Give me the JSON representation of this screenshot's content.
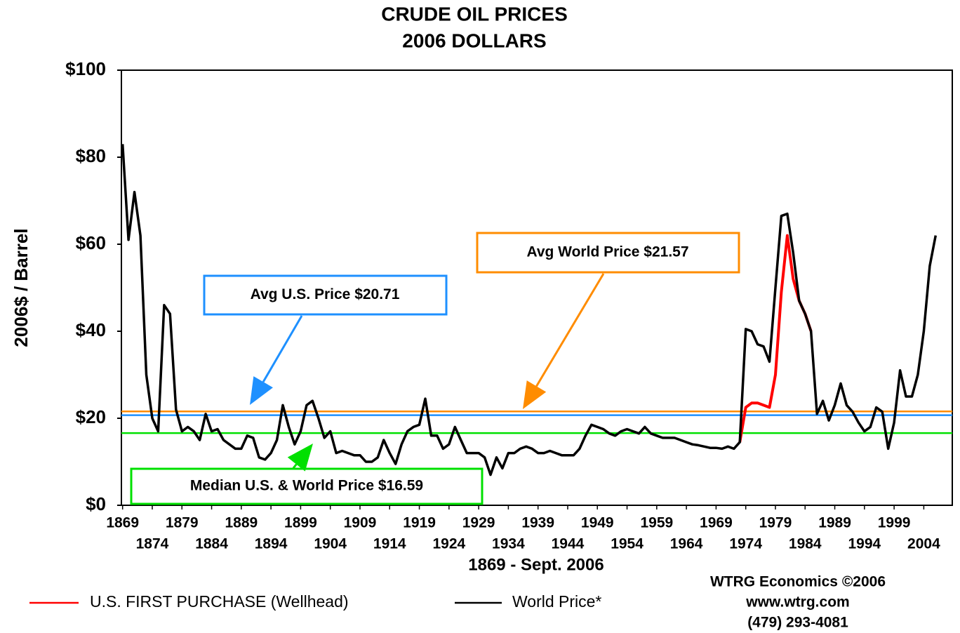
{
  "chart_data": {
    "type": "line",
    "title": "CRUDE OIL PRICES",
    "subtitle": "2006 DOLLARS",
    "xlabel": "1869 - Sept. 2006",
    "ylabel": "2006$ / Barrel",
    "x": [
      1869,
      1870,
      1871,
      1872,
      1873,
      1874,
      1875,
      1876,
      1877,
      1878,
      1879,
      1880,
      1881,
      1882,
      1883,
      1884,
      1885,
      1886,
      1887,
      1888,
      1889,
      1890,
      1891,
      1892,
      1893,
      1894,
      1895,
      1896,
      1897,
      1898,
      1899,
      1900,
      1901,
      1902,
      1903,
      1904,
      1905,
      1906,
      1907,
      1908,
      1909,
      1910,
      1911,
      1912,
      1913,
      1914,
      1915,
      1916,
      1917,
      1918,
      1919,
      1920,
      1921,
      1922,
      1923,
      1924,
      1925,
      1926,
      1927,
      1928,
      1929,
      1930,
      1931,
      1932,
      1933,
      1934,
      1935,
      1936,
      1937,
      1938,
      1939,
      1940,
      1941,
      1942,
      1943,
      1944,
      1945,
      1946,
      1947,
      1948,
      1949,
      1950,
      1951,
      1952,
      1953,
      1954,
      1955,
      1956,
      1957,
      1958,
      1959,
      1960,
      1961,
      1962,
      1963,
      1964,
      1965,
      1966,
      1967,
      1968,
      1969,
      1970,
      1971,
      1972,
      1973,
      1974,
      1975,
      1976,
      1977,
      1978,
      1979,
      1980,
      1981,
      1982,
      1983,
      1984,
      1985,
      1986,
      1987,
      1988,
      1989,
      1990,
      1991,
      1992,
      1993,
      1994,
      1995,
      1996,
      1997,
      1998,
      1999,
      2000,
      2001,
      2002,
      2003,
      2004,
      2005,
      2006
    ],
    "series": [
      {
        "name": "U.S. FIRST PURCHASE (Wellhead)",
        "color": "#ff0000",
        "values": [
          null,
          null,
          null,
          null,
          null,
          null,
          null,
          null,
          null,
          null,
          null,
          null,
          null,
          null,
          null,
          null,
          null,
          null,
          null,
          null,
          null,
          null,
          null,
          null,
          null,
          null,
          null,
          null,
          null,
          null,
          null,
          null,
          null,
          null,
          null,
          null,
          null,
          null,
          null,
          null,
          null,
          null,
          null,
          null,
          null,
          null,
          null,
          null,
          null,
          null,
          null,
          null,
          null,
          null,
          null,
          null,
          null,
          null,
          null,
          null,
          null,
          null,
          null,
          null,
          null,
          null,
          null,
          null,
          null,
          null,
          null,
          null,
          null,
          null,
          null,
          null,
          null,
          null,
          null,
          null,
          null,
          null,
          null,
          null,
          null,
          null,
          null,
          null,
          null,
          null,
          null,
          null,
          null,
          null,
          null,
          null,
          null,
          null,
          null,
          null,
          null,
          null,
          null,
          null,
          14.5,
          22.5,
          23.5,
          23.5,
          23,
          22.5,
          30,
          49,
          62,
          52,
          47,
          44,
          40,
          null,
          null,
          null,
          null,
          null,
          null,
          null,
          null,
          null,
          null,
          null,
          null,
          null,
          null,
          null,
          null,
          null,
          null,
          null,
          null,
          null
        ]
      },
      {
        "name": "World Price*",
        "color": "#000000",
        "values": [
          83,
          61,
          72,
          62,
          30,
          20,
          17,
          46,
          44,
          22,
          17,
          18,
          17,
          15,
          21,
          17,
          17.5,
          15,
          14,
          13,
          13,
          16,
          15.5,
          11,
          10.5,
          12,
          15,
          23,
          18,
          14,
          17,
          23,
          24,
          20,
          15.5,
          17,
          12,
          12.5,
          12,
          11.5,
          11.5,
          10,
          10,
          11,
          15,
          12,
          9.5,
          14,
          17,
          18,
          18.5,
          24.5,
          16,
          16,
          13,
          14,
          18,
          15,
          12,
          12,
          12,
          11,
          7,
          11,
          8.5,
          12,
          12,
          13,
          13.5,
          13,
          12,
          12,
          12.5,
          12,
          11.5,
          11.5,
          11.5,
          13,
          16,
          18.5,
          18,
          17.5,
          16.5,
          16,
          17,
          17.5,
          17,
          16.5,
          18,
          16.5,
          16,
          15.5,
          15.5,
          15.5,
          15,
          14.5,
          14,
          13.8,
          13.5,
          13.2,
          13.2,
          13,
          13.5,
          13,
          14.5,
          40.5,
          40,
          37,
          36.5,
          33,
          50,
          66.5,
          67,
          58,
          47,
          44,
          40,
          21,
          24,
          19.5,
          23,
          28,
          23,
          21.5,
          19,
          17,
          18,
          22.5,
          21.5,
          13,
          19,
          31,
          25,
          25,
          30,
          40,
          55,
          62
        ]
      }
    ],
    "reference_lines": [
      {
        "text": "Avg  World Price  $21.57",
        "value": 21.57,
        "color": "#ff8c00"
      },
      {
        "text": "Avg  U.S. Price  $20.71",
        "value": 20.71,
        "color": "#1e90ff"
      },
      {
        "text": "Median U.S. & World Price $16.59",
        "value": 16.59,
        "color": "#00e000"
      }
    ],
    "xlim": [
      1868.8,
      2008.8
    ],
    "xticks": [
      1869,
      1874,
      1879,
      1884,
      1889,
      1894,
      1899,
      1904,
      1909,
      1914,
      1919,
      1924,
      1929,
      1934,
      1939,
      1944,
      1949,
      1954,
      1959,
      1964,
      1969,
      1974,
      1979,
      1984,
      1989,
      1994,
      1999,
      2004
    ],
    "ylim": [
      0,
      100
    ],
    "yticks": [
      {
        "value": 0,
        "label": "$0"
      },
      {
        "value": 20,
        "label": "$20"
      },
      {
        "value": 40,
        "label": "$40"
      },
      {
        "value": 60,
        "label": "$60"
      },
      {
        "value": 80,
        "label": "$80"
      },
      {
        "value": 100,
        "label": "$100"
      }
    ],
    "source": [
      "WTRG Economics  ©2006",
      "www.wtrg.com",
      "(479) 293-4081"
    ]
  }
}
